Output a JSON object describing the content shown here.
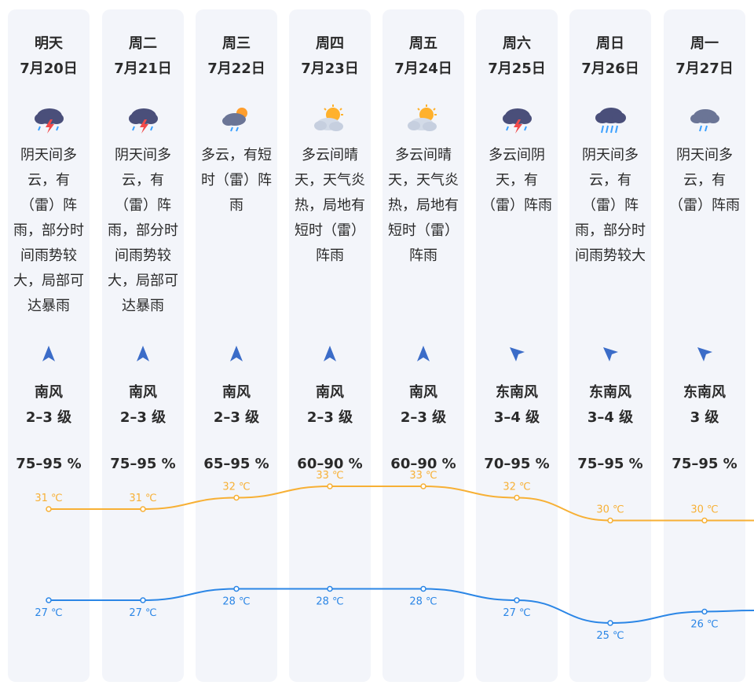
{
  "days": [
    {
      "day": "明天",
      "date": "7月20日",
      "icon": "thunderstorm-icon",
      "desc": "阴天间多\n云，有\n（雷）阵\n雨，部分时\n间雨势较\n大，局部可\n达暴雨",
      "wind_dir": "南风",
      "wind_level": "2–3 级",
      "humidity": "75–95 %",
      "high": "31 ℃",
      "low": "27 ℃",
      "high_v": 31,
      "low_v": 27,
      "arrow": "north"
    },
    {
      "day": "周二",
      "date": "7月21日",
      "icon": "thunderstorm-icon",
      "desc": "阴天间多\n云，有\n（雷）阵\n雨，部分时\n间雨势较\n大，局部可\n达暴雨",
      "wind_dir": "南风",
      "wind_level": "2–3 级",
      "humidity": "75–95 %",
      "high": "31 ℃",
      "low": "27 ℃",
      "high_v": 31,
      "low_v": 27,
      "arrow": "north"
    },
    {
      "day": "周三",
      "date": "7月22日",
      "icon": "cloudy-sun-shower-icon",
      "desc": "多云，有短\n时（雷）阵\n雨",
      "wind_dir": "南风",
      "wind_level": "2–3 级",
      "humidity": "65–95 %",
      "high": "32 ℃",
      "low": "28 ℃",
      "high_v": 32,
      "low_v": 28,
      "arrow": "north"
    },
    {
      "day": "周四",
      "date": "7月23日",
      "icon": "partly-sunny-icon",
      "desc": "多云间晴\n天，天气炎\n热，局地有\n短时（雷）\n阵雨",
      "wind_dir": "南风",
      "wind_level": "2–3 级",
      "humidity": "60–90 %",
      "high": "33 ℃",
      "low": "28 ℃",
      "high_v": 33,
      "low_v": 28,
      "arrow": "north"
    },
    {
      "day": "周五",
      "date": "7月24日",
      "icon": "partly-sunny-icon",
      "desc": "多云间晴\n天，天气炎\n热，局地有\n短时（雷）\n阵雨",
      "wind_dir": "南风",
      "wind_level": "2–3 级",
      "humidity": "60–90 %",
      "high": "33 ℃",
      "low": "28 ℃",
      "high_v": 33,
      "low_v": 28,
      "arrow": "north"
    },
    {
      "day": "周六",
      "date": "7月25日",
      "icon": "thunderstorm-icon",
      "desc": "多云间阴\n天，有\n（雷）阵雨",
      "wind_dir": "东南风",
      "wind_level": "3–4 级",
      "humidity": "70–95 %",
      "high": "32 ℃",
      "low": "27 ℃",
      "high_v": 32,
      "low_v": 27,
      "arrow": "northwest"
    },
    {
      "day": "周日",
      "date": "7月26日",
      "icon": "heavy-rain-icon",
      "desc": "阴天间多\n云，有\n（雷）阵\n雨，部分时\n间雨势较大",
      "wind_dir": "东南风",
      "wind_level": "3–4 级",
      "humidity": "75–95 %",
      "high": "30 ℃",
      "low": "25 ℃",
      "high_v": 30,
      "low_v": 25,
      "arrow": "northwest"
    },
    {
      "day": "周一",
      "date": "7月27日",
      "icon": "rain-cloud-icon",
      "desc": "阴天间多\n云，有\n（雷）阵雨",
      "wind_dir": "东南风",
      "wind_level": "3 级",
      "humidity": "75–95 %",
      "high": "30 ℃",
      "low": "26 ℃",
      "high_v": 30,
      "low_v": 26,
      "arrow": "northwest"
    }
  ],
  "colors": {
    "high": "#f7b035",
    "low": "#2b86e6",
    "card": "#f3f5fa",
    "arrow": "#3b6cc8"
  }
}
